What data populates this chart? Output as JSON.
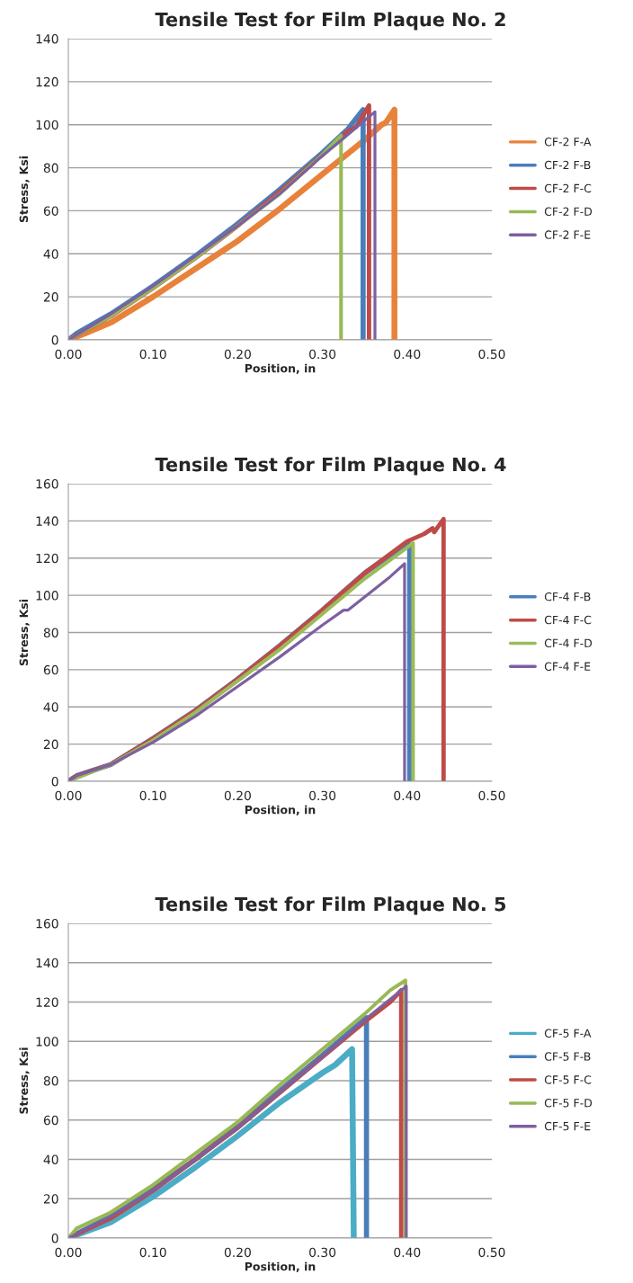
{
  "chart_data": [
    {
      "type": "line",
      "title": "Tensile Test for Film Plaque No. 2",
      "xlabel": "Position, in",
      "ylabel": "Stress, Ksi",
      "xlim": [
        0,
        0.5
      ],
      "ylim": [
        0,
        140
      ],
      "xticks": [
        {
          "value": 0,
          "label": "0.00"
        },
        {
          "value": 0.1,
          "label": "0.10"
        },
        {
          "value": 0.2,
          "label": "0.20"
        },
        {
          "value": 0.3,
          "label": "0.30"
        },
        {
          "value": 0.4,
          "label": "0.40"
        },
        {
          "value": 0.5,
          "label": "0.50"
        }
      ],
      "yticks": [
        0,
        20,
        40,
        60,
        80,
        100,
        120,
        140
      ],
      "grid": "y",
      "legend": "right",
      "marker": "none",
      "line_style": "solid",
      "series": [
        {
          "name": "CF-2 F-A",
          "color": "#e8823a",
          "x": [
            0,
            0.02,
            0.05,
            0.1,
            0.15,
            0.2,
            0.25,
            0.3,
            0.35,
            0.37,
            0.375,
            0.385,
            0.385
          ],
          "values": [
            0,
            3,
            8,
            20,
            33,
            46,
            61,
            77,
            93,
            100,
            101,
            107,
            0
          ]
        },
        {
          "name": "CF-2 F-B",
          "color": "#4a7ebb",
          "x": [
            0,
            0.01,
            0.05,
            0.1,
            0.15,
            0.2,
            0.25,
            0.3,
            0.33,
            0.348,
            0.348
          ],
          "values": [
            0,
            3,
            12,
            25,
            39,
            54,
            70,
            87,
            98,
            107,
            0
          ]
        },
        {
          "name": "CF-2 F-C",
          "color": "#be4b48",
          "x": [
            0,
            0.05,
            0.1,
            0.15,
            0.2,
            0.25,
            0.3,
            0.33,
            0.34,
            0.355,
            0.355
          ],
          "values": [
            0,
            11,
            24,
            38,
            53,
            69,
            86,
            97,
            99,
            109,
            0
          ]
        },
        {
          "name": "CF-2 F-D",
          "color": "#98b954",
          "x": [
            0,
            0.05,
            0.1,
            0.15,
            0.2,
            0.25,
            0.3,
            0.322,
            0.322
          ],
          "values": [
            0,
            11,
            24,
            38,
            53,
            68,
            86,
            95,
            0
          ]
        },
        {
          "name": "CF-2 F-E",
          "color": "#7d60a0",
          "x": [
            0,
            0.05,
            0.1,
            0.15,
            0.2,
            0.25,
            0.29,
            0.292,
            0.32,
            0.362,
            0.362
          ],
          "values": [
            0,
            12,
            25,
            39,
            53,
            68,
            82,
            83,
            92,
            106,
            0
          ]
        }
      ]
    },
    {
      "type": "line",
      "title": "Tensile Test for Film Plaque No. 4",
      "xlabel": "Position, in",
      "ylabel": "Stress, Ksi",
      "xlim": [
        0,
        0.5
      ],
      "ylim": [
        0,
        160
      ],
      "xticks": [
        {
          "value": 0,
          "label": "0.00"
        },
        {
          "value": 0.1,
          "label": "0.10"
        },
        {
          "value": 0.2,
          "label": "0.20"
        },
        {
          "value": 0.3,
          "label": "0.30"
        },
        {
          "value": 0.4,
          "label": "0.40"
        },
        {
          "value": 0.5,
          "label": "0.50"
        }
      ],
      "yticks": [
        0,
        20,
        40,
        60,
        80,
        100,
        120,
        140,
        160
      ],
      "grid": "y",
      "legend": "right",
      "marker": "none",
      "line_style": "solid",
      "series": [
        {
          "name": "CF-4 F-B",
          "color": "#4a7ebb",
          "x": [
            0,
            0.01,
            0.05,
            0.1,
            0.15,
            0.2,
            0.25,
            0.3,
            0.35,
            0.4,
            0.403,
            0.403
          ],
          "values": [
            0,
            3,
            9,
            23,
            38,
            55,
            73,
            92,
            112,
            128,
            127,
            0
          ]
        },
        {
          "name": "CF-4 F-C",
          "color": "#be4b48",
          "x": [
            0,
            0.01,
            0.05,
            0.1,
            0.15,
            0.2,
            0.25,
            0.3,
            0.35,
            0.4,
            0.42,
            0.43,
            0.432,
            0.443,
            0.443
          ],
          "values": [
            0,
            3,
            9,
            23,
            38,
            55,
            73,
            92,
            112,
            129,
            133,
            136,
            134,
            141,
            0
          ]
        },
        {
          "name": "CF-4 F-D",
          "color": "#9bbb59",
          "x": [
            0,
            0.05,
            0.1,
            0.15,
            0.2,
            0.25,
            0.3,
            0.35,
            0.407,
            0.407
          ],
          "values": [
            0,
            9,
            22,
            37,
            54,
            71,
            90,
            109,
            128,
            0
          ]
        },
        {
          "name": "CF-4 F-E",
          "color": "#7d60a0",
          "x": [
            0,
            0.01,
            0.05,
            0.1,
            0.15,
            0.2,
            0.25,
            0.3,
            0.325,
            0.33,
            0.38,
            0.397,
            0.397
          ],
          "values": [
            0,
            3,
            9,
            21,
            35,
            51,
            67,
            84,
            92,
            92,
            110,
            117,
            0
          ]
        }
      ]
    },
    {
      "type": "line",
      "title": "Tensile Test for Film Plaque No. 5",
      "xlabel": "Position, in",
      "ylabel": "Stress, Ksi",
      "xlim": [
        0,
        0.5
      ],
      "ylim": [
        0,
        160
      ],
      "xticks": [
        {
          "value": 0,
          "label": "0.00"
        },
        {
          "value": 0.1,
          "label": "0.10"
        },
        {
          "value": 0.2,
          "label": "0.20"
        },
        {
          "value": 0.3,
          "label": "0.30"
        },
        {
          "value": 0.4,
          "label": "0.40"
        },
        {
          "value": 0.5,
          "label": "0.50"
        }
      ],
      "yticks": [
        0,
        20,
        40,
        60,
        80,
        100,
        120,
        140,
        160
      ],
      "grid": "y",
      "legend": "right",
      "marker": "none",
      "line_style": "solid",
      "series": [
        {
          "name": "CF-5 F-A",
          "color": "#4bacc6",
          "x": [
            0,
            0.05,
            0.1,
            0.15,
            0.2,
            0.25,
            0.3,
            0.315,
            0.335,
            0.337
          ],
          "values": [
            0,
            8,
            21,
            36,
            52,
            69,
            84,
            88,
            96,
            0
          ]
        },
        {
          "name": "CF-5 F-B",
          "color": "#4a7ebb",
          "x": [
            0,
            0.05,
            0.1,
            0.15,
            0.2,
            0.25,
            0.3,
            0.352,
            0.352
          ],
          "values": [
            0,
            11,
            25,
            40,
            57,
            75,
            93,
            112,
            0
          ]
        },
        {
          "name": "CF-5 F-C",
          "color": "#be4b48",
          "x": [
            0,
            0.05,
            0.1,
            0.15,
            0.2,
            0.25,
            0.3,
            0.35,
            0.38,
            0.393,
            0.393
          ],
          "values": [
            0,
            10,
            24,
            40,
            56,
            74,
            92,
            110,
            120,
            126,
            0
          ]
        },
        {
          "name": "CF-5 F-D",
          "color": "#98b954",
          "x": [
            0,
            0.01,
            0.05,
            0.1,
            0.15,
            0.2,
            0.25,
            0.3,
            0.35,
            0.38,
            0.398,
            0.398
          ],
          "values": [
            0,
            5,
            13,
            27,
            43,
            59,
            78,
            96,
            114,
            126,
            131,
            0
          ]
        },
        {
          "name": "CF-5 F-E",
          "color": "#7d60a0",
          "x": [
            0,
            0.05,
            0.1,
            0.15,
            0.2,
            0.25,
            0.3,
            0.35,
            0.399,
            0.399
          ],
          "values": [
            0,
            11,
            24,
            40,
            56,
            74,
            92,
            111,
            128,
            0
          ]
        }
      ]
    }
  ]
}
